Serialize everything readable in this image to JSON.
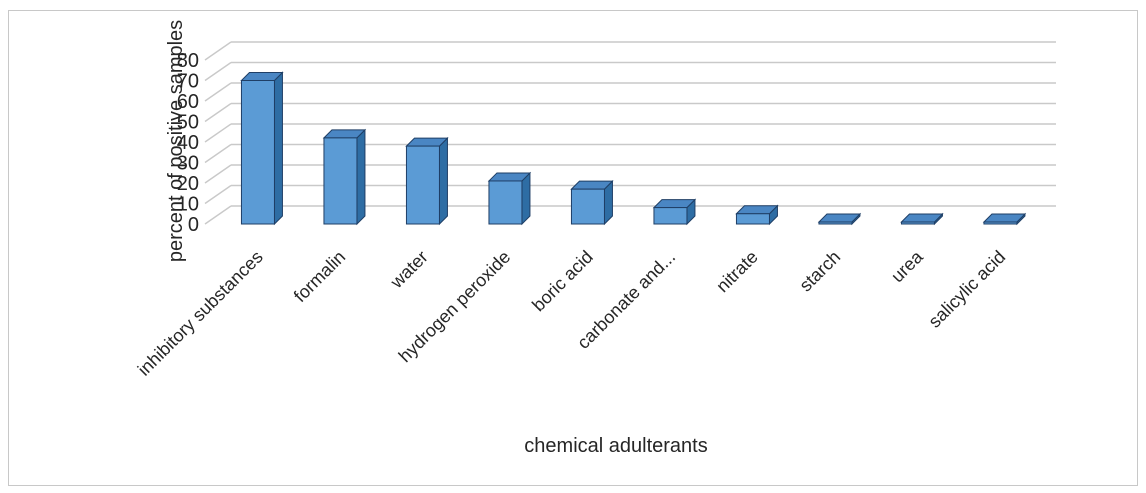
{
  "chart_data": {
    "type": "bar",
    "style": "3d-column",
    "categories": [
      "inhibitory substances",
      "formalin",
      "water",
      "hydrogen peroxide",
      "boric acid",
      "carbonate and...",
      "nitrate",
      "starch",
      "urea",
      "salicylic acid"
    ],
    "values": [
      70,
      42,
      38,
      21,
      17,
      8,
      5,
      0.5,
      0.5,
      0.5
    ],
    "ylabel": "percent of positive samples",
    "xlabel": "chemical adulterants",
    "ylim": [
      0,
      80
    ],
    "yticks": [
      0,
      10,
      20,
      30,
      40,
      50,
      60,
      70,
      80
    ],
    "grid": true,
    "legend": "none",
    "colors": {
      "bar_front": "#5b9bd5",
      "bar_side": "#2e6da4",
      "bar_top": "#4a86c3",
      "bar_outline": "#1f3f66",
      "grid": "#c9c9c9"
    }
  }
}
